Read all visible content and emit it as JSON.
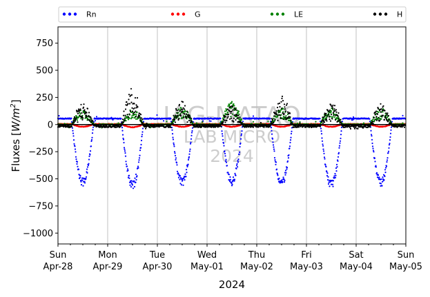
{
  "chart_data": {
    "type": "scatter",
    "xlabel": "2024",
    "ylabel_main": "Fluxes [",
    "ylabel_unit_base": "W/m",
    "ylabel_unit_exp": "2",
    "ylabel_close": "]",
    "ylim": [
      -1100,
      900
    ],
    "yticks": [
      -1000,
      -750,
      -500,
      -250,
      0,
      250,
      500,
      750
    ],
    "x_range": [
      "2024-04-28",
      "2024-05-05"
    ],
    "xticks": [
      {
        "day": "Sun",
        "date": "Apr-28"
      },
      {
        "day": "Mon",
        "date": "Apr-29"
      },
      {
        "day": "Tue",
        "date": "Apr-30"
      },
      {
        "day": "Wed",
        "date": "May-01"
      },
      {
        "day": "Thu",
        "date": "May-02"
      },
      {
        "day": "Fri",
        "date": "May-03"
      },
      {
        "day": "Sat",
        "date": "May-04"
      },
      {
        "day": "Sun",
        "date": "May-05"
      }
    ],
    "grid": "vertical at day boundaries",
    "legend_placement": "top, above plot",
    "watermark": [
      "IAG-MATAO",
      "LAB MICRO",
      "2024"
    ],
    "series": [
      {
        "name": "Rn",
        "color": "#0000ff",
        "night_value": 55,
        "daily_min": [
          -545,
          -575,
          -545,
          -540,
          -550,
          -570,
          -545
        ]
      },
      {
        "name": "G",
        "color": "#ff0000",
        "night_value": 5,
        "daily_min": [
          -20,
          -25,
          -20,
          -20,
          -20,
          -20,
          -20
        ]
      },
      {
        "name": "LE",
        "color": "#008000",
        "night_value": 0,
        "daily_max": [
          145,
          140,
          160,
          215,
          150,
          150,
          150
        ]
      },
      {
        "name": "H",
        "color": "#000000",
        "night_value": -15,
        "daily_max": [
          215,
          350,
          245,
          180,
          280,
          205,
          200
        ]
      }
    ]
  }
}
